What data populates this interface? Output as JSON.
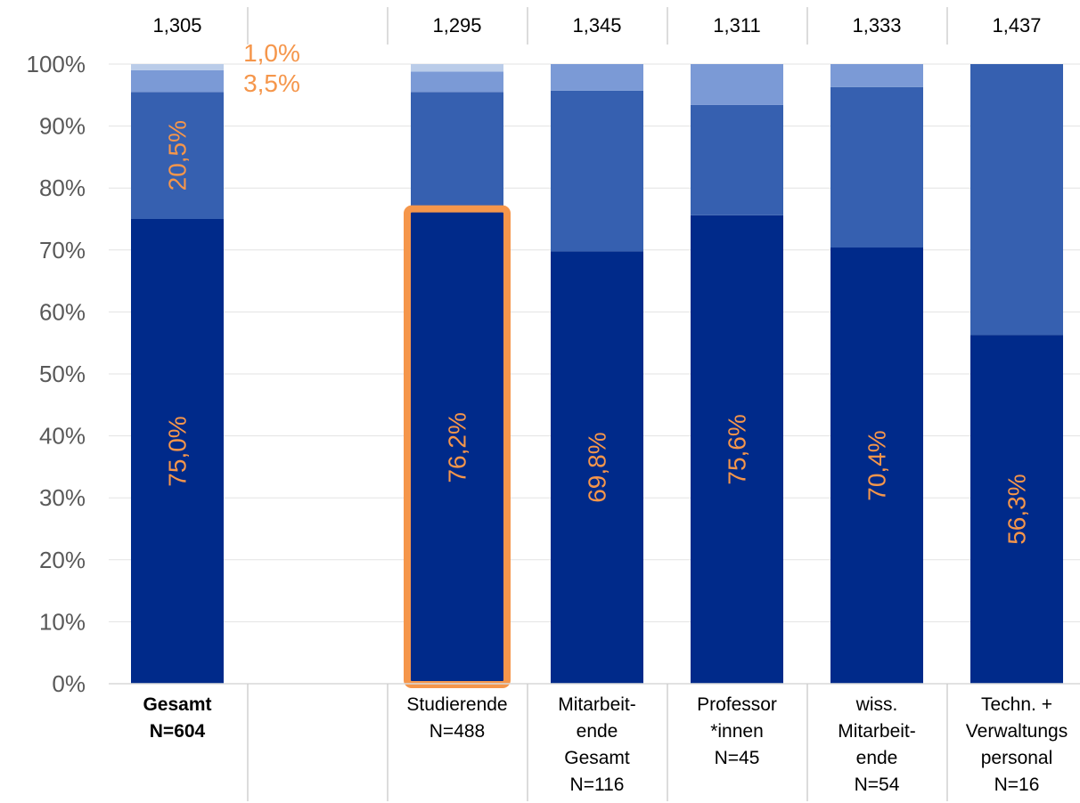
{
  "chart_data": {
    "type": "bar",
    "stacked": true,
    "orientation": "vertical",
    "ylim": [
      0,
      100
    ],
    "yticks": [
      "0%",
      "10%",
      "20%",
      "30%",
      "40%",
      "50%",
      "60%",
      "70%",
      "80%",
      "90%",
      "100%"
    ],
    "grid": true,
    "legend": "none",
    "categories": [
      {
        "lines": [
          "Gesamt",
          "N=604"
        ],
        "bold": true,
        "top_value": "1,305",
        "empty": false
      },
      {
        "lines": [],
        "bold": false,
        "top_value": "",
        "empty": true
      },
      {
        "lines": [
          "Studierende",
          "N=488"
        ],
        "bold": false,
        "top_value": "1,295",
        "empty": false
      },
      {
        "lines": [
          "Mitarbeit-",
          "ende",
          "Gesamt",
          "N=116"
        ],
        "bold": false,
        "top_value": "1,345",
        "empty": false
      },
      {
        "lines": [
          "Professor",
          "*innen",
          "N=45"
        ],
        "bold": false,
        "top_value": "1,311",
        "empty": false
      },
      {
        "lines": [
          "wiss.",
          "Mitarbeit-",
          "ende",
          "N=54"
        ],
        "bold": false,
        "top_value": "1,333",
        "empty": false
      },
      {
        "lines": [
          "Techn. +",
          "Verwaltungs",
          "personal",
          "N=16"
        ],
        "bold": false,
        "top_value": "1,437",
        "empty": false
      }
    ],
    "series": [
      {
        "color": "#002a8a",
        "values": [
          75.0,
          0,
          76.2,
          69.8,
          75.6,
          70.4,
          56.3
        ]
      },
      {
        "color": "#3660b0",
        "values": [
          20.5,
          0,
          19.3,
          25.9,
          17.8,
          25.9,
          43.7
        ]
      },
      {
        "color": "#7b9ad6",
        "values": [
          3.5,
          0,
          3.3,
          4.3,
          6.6,
          3.7,
          0
        ]
      },
      {
        "color": "#bacce9",
        "values": [
          1.0,
          0,
          1.2,
          0,
          0,
          0,
          0
        ]
      }
    ],
    "data_labels": [
      {
        "category": 0,
        "series": 0,
        "text": "75,0%"
      },
      {
        "category": 0,
        "series": 1,
        "text": "20,5%"
      },
      {
        "category": 2,
        "series": 0,
        "text": "76,2%"
      },
      {
        "category": 3,
        "series": 0,
        "text": "69,8%"
      },
      {
        "category": 4,
        "series": 0,
        "text": "75,6%"
      },
      {
        "category": 5,
        "series": 0,
        "text": "70,4%"
      },
      {
        "category": 6,
        "series": 0,
        "text": "56,3%"
      }
    ],
    "side_labels": [
      {
        "category": 0,
        "series": 3,
        "text": "1,0%"
      },
      {
        "category": 0,
        "series": 2,
        "text": "3,5%"
      }
    ],
    "label_color": "#f5964b",
    "highlight": {
      "category": 2,
      "series": 0,
      "color": "#f5964b"
    }
  }
}
